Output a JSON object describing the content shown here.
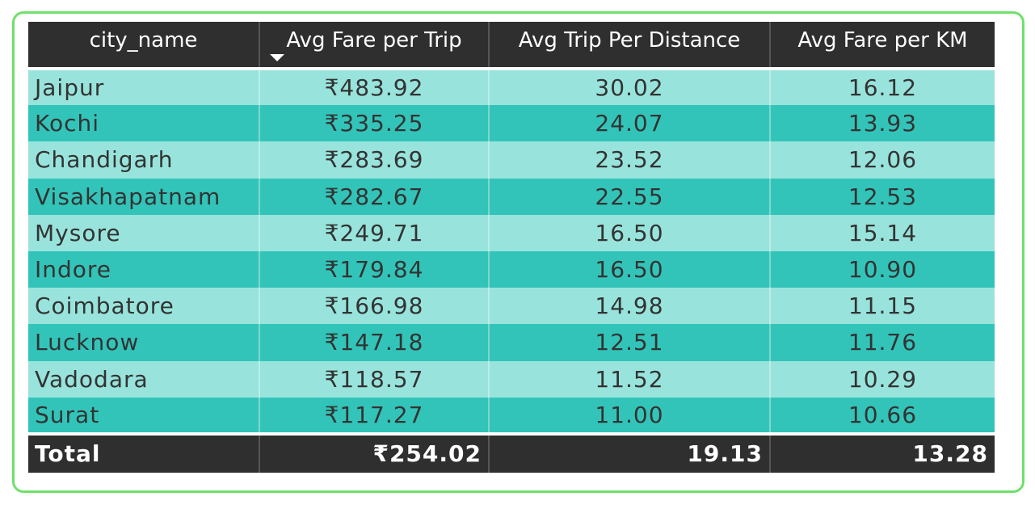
{
  "chart_data": {
    "type": "table",
    "columns": [
      "city_name",
      "Avg Fare per Trip",
      "Avg Trip Per Distance",
      "Avg Fare per KM"
    ],
    "sorted_column": "Avg Fare per Trip",
    "sort_direction": "descending",
    "rows": [
      [
        "Jaipur",
        "₹483.92",
        "30.02",
        "16.12"
      ],
      [
        "Kochi",
        "₹335.25",
        "24.07",
        "13.93"
      ],
      [
        "Chandigarh",
        "₹283.69",
        "23.52",
        "12.06"
      ],
      [
        "Visakhapatnam",
        "₹282.67",
        "22.55",
        "12.53"
      ],
      [
        "Mysore",
        "₹249.71",
        "16.50",
        "15.14"
      ],
      [
        "Indore",
        "₹179.84",
        "16.50",
        "10.90"
      ],
      [
        "Coimbatore",
        "₹166.98",
        "14.98",
        "11.15"
      ],
      [
        "Lucknow",
        "₹147.18",
        "12.51",
        "11.76"
      ],
      [
        "Vadodara",
        "₹118.57",
        "11.52",
        "10.29"
      ],
      [
        "Surat",
        "₹117.27",
        "11.00",
        "10.66"
      ]
    ],
    "total": [
      "Total",
      "₹254.02",
      "19.13",
      "13.28"
    ]
  },
  "colors": {
    "header_bg": "#2f2f2f",
    "row_light": "#98e4dc",
    "row_dark": "#33c4b9",
    "frame_border": "#6fe06a"
  },
  "icons": {
    "sort": "sort-descending-icon"
  }
}
